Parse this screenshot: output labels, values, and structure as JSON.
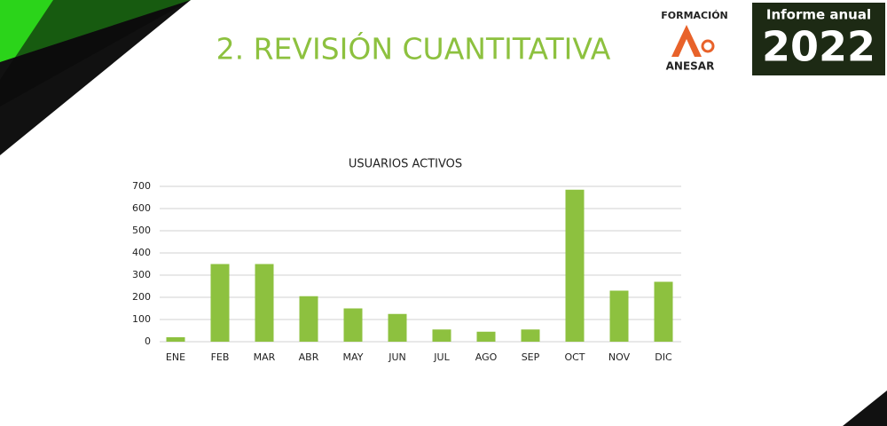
{
  "header": {
    "title": "2. REVISIÓN CUANTITATIVA",
    "logo_top": "FORMACIÓN",
    "logo_bottom": "ANESAR",
    "badge_top": "Informe anual",
    "badge_year": "2022"
  },
  "chart_data": {
    "type": "bar",
    "title": "USUARIOS ACTIVOS",
    "categories": [
      "ENE",
      "FEB",
      "MAR",
      "ABR",
      "MAY",
      "JUN",
      "JUL",
      "AGO",
      "SEP",
      "OCT",
      "NOV",
      "DIC"
    ],
    "values": [
      20,
      350,
      350,
      205,
      150,
      125,
      55,
      45,
      55,
      685,
      230,
      270
    ],
    "color": "#8dc13f",
    "ylim": [
      0,
      700
    ],
    "yticks": [
      0,
      100,
      200,
      300,
      400,
      500,
      600,
      700
    ],
    "grid": true
  }
}
